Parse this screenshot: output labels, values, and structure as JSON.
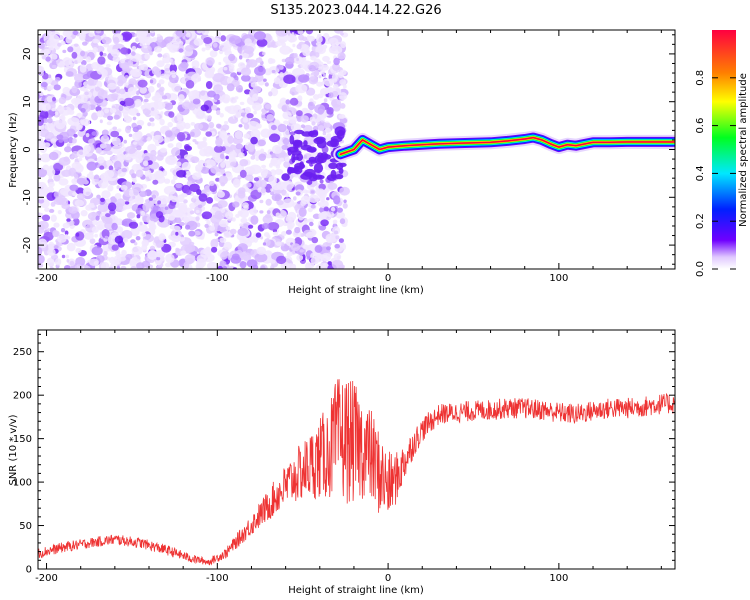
{
  "figure_title": "S135.2023.044.14.22.G26",
  "chart_data": [
    {
      "type": "heatmap",
      "title": "S135.2023.044.14.22.G26",
      "xlabel": "Height of straight line (km)",
      "ylabel": "Frequency (Hz)",
      "xlim": [
        -205,
        168
      ],
      "ylim": [
        -25,
        25
      ],
      "xticks": [
        -200,
        -100,
        0,
        100
      ],
      "yticks": [
        -20,
        -10,
        0,
        10,
        20
      ],
      "colorbar": {
        "label": "Normalized spectral amplitude",
        "range": [
          0,
          1
        ],
        "ticks": [
          "0.0",
          "0.2",
          "0.4",
          "0.6",
          "0.8"
        ]
      },
      "noise_region_x_range": [
        -205,
        -25
      ],
      "signal_track": {
        "x": [
          -28,
          -20,
          -15,
          -10,
          -5,
          0,
          10,
          20,
          30,
          40,
          50,
          60,
          70,
          80,
          85,
          90,
          95,
          100,
          105,
          110,
          120,
          130,
          140,
          150,
          160,
          168
        ],
        "frequency_hz": [
          -1,
          0,
          2,
          1,
          0,
          0.5,
          0.8,
          1,
          1.2,
          1.3,
          1.4,
          1.5,
          1.8,
          2.2,
          2.5,
          2,
          1.2,
          0.5,
          1,
          0.8,
          1.5,
          1.5,
          1.6,
          1.6,
          1.6,
          1.6
        ]
      },
      "colors": {
        "noise": "#7b2ff7",
        "spectrum": [
          "#ffffff",
          "#e0c8ff",
          "#7000ff",
          "#0020ff",
          "#00e8ff",
          "#00ff20",
          "#ffff00",
          "#ff8000",
          "#ff0040"
        ]
      }
    },
    {
      "type": "line",
      "xlabel": "Height of straight line (km)",
      "ylabel": "SNR (10 * v/v)",
      "xlim": [
        -205,
        168
      ],
      "ylim": [
        0,
        275
      ],
      "xticks": [
        -200,
        -100,
        0,
        100
      ],
      "yticks": [
        0,
        50,
        100,
        150,
        200,
        250
      ],
      "series": [
        {
          "name": "SNR",
          "color": "#ee3333",
          "x": [
            -205,
            -190,
            -175,
            -160,
            -145,
            -130,
            -115,
            -105,
            -95,
            -85,
            -75,
            -65,
            -55,
            -45,
            -35,
            -30,
            -25,
            -20,
            -15,
            -10,
            -5,
            0,
            5,
            10,
            15,
            20,
            25,
            30,
            40,
            50,
            60,
            70,
            80,
            90,
            100,
            110,
            120,
            130,
            140,
            150,
            160,
            168
          ],
          "values": [
            18,
            25,
            30,
            34,
            30,
            22,
            12,
            8,
            18,
            40,
            62,
            85,
            105,
            120,
            135,
            150,
            150,
            145,
            140,
            130,
            110,
            95,
            105,
            125,
            145,
            160,
            170,
            178,
            180,
            182,
            183,
            185,
            185,
            183,
            180,
            178,
            182,
            185,
            185,
            187,
            190,
            190
          ],
          "noise_amplitude": [
            6,
            6,
            6,
            6,
            6,
            6,
            5,
            4,
            6,
            10,
            15,
            22,
            30,
            40,
            55,
            70,
            75,
            70,
            60,
            55,
            50,
            40,
            30,
            22,
            16,
            14,
            13,
            12,
            12,
            12,
            12,
            12,
            12,
            12,
            12,
            12,
            12,
            12,
            12,
            12,
            12,
            12
          ]
        }
      ]
    }
  ]
}
